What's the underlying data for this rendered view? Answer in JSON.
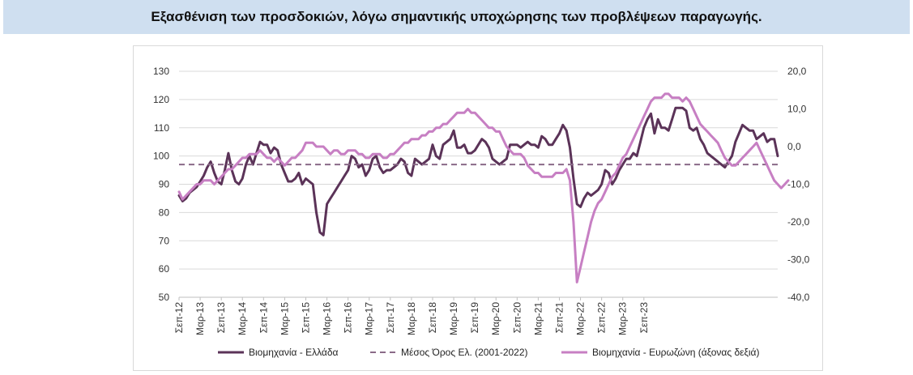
{
  "header": {
    "title": "Εξασθένιση των προσδοκιών, λόγω σημαντικής υποχώρησης των προβλέψεων παραγωγής."
  },
  "chart_data": {
    "type": "line",
    "title": "",
    "grid": "horizontal",
    "legend_position": "bottom",
    "left_axis": {
      "min": 50,
      "max": 130,
      "step": 10,
      "ticks": [
        "50",
        "60",
        "70",
        "80",
        "90",
        "100",
        "110",
        "120",
        "130"
      ]
    },
    "right_axis": {
      "min": -40,
      "max": 20,
      "step": 10,
      "ticks": [
        "-40,0",
        "-30,0",
        "-20,0",
        "-10,0",
        "0,0",
        "10,0",
        "20,0"
      ]
    },
    "x_start": "2012-09",
    "x_end": "2023-09",
    "x_tick_labels": [
      "Σεπ-12",
      "Μαρ-13",
      "Σεπ-13",
      "Μαρ-14",
      "Σεπ-14",
      "Μαρ-15",
      "Σεπ-15",
      "Μαρ-16",
      "Σεπ-16",
      "Μαρ-17",
      "Σεπ-17",
      "Μαρ-18",
      "Σεπ-18",
      "Μαρ-19",
      "Σεπ-19",
      "Μαρ-20",
      "Σεπ-20",
      "Μαρ-21",
      "Σεπ-21",
      "Μαρ-22",
      "Σεπ-22",
      "Μαρ-23",
      "Σεπ-23"
    ],
    "series": [
      {
        "name": "Βιομηχανία  - Ελλάδα",
        "axis": "left",
        "color": "#5b3358",
        "style": "solid",
        "values": [
          86,
          84,
          85,
          87,
          88,
          89,
          91,
          93,
          96,
          98,
          94,
          91,
          90,
          95,
          101,
          95,
          91,
          90,
          92,
          97,
          100,
          97,
          101,
          105,
          104,
          104,
          101,
          103,
          102,
          97,
          94,
          91,
          91,
          92,
          94,
          90,
          92,
          91,
          90,
          80,
          73,
          72,
          83,
          85,
          87,
          89,
          91,
          93,
          95,
          100,
          99,
          96,
          97,
          93,
          95,
          99,
          100,
          96,
          94,
          95,
          95,
          96,
          97,
          99,
          98,
          94,
          93,
          99,
          98,
          97,
          98,
          99,
          104,
          100,
          99,
          104,
          105,
          106,
          109,
          103,
          103,
          104,
          101,
          101,
          102,
          104,
          106,
          105,
          103,
          99,
          98,
          97,
          98,
          99,
          104,
          104,
          104,
          103,
          104,
          105,
          104,
          104,
          103,
          107,
          106,
          104,
          104,
          106,
          108,
          111,
          109,
          103,
          92,
          83,
          82,
          85,
          87,
          86,
          87,
          88,
          90,
          95,
          94,
          90,
          92,
          95,
          97,
          99,
          99,
          101,
          100,
          105,
          110,
          113,
          115,
          108,
          113,
          110,
          110,
          109,
          113,
          117,
          117,
          117,
          116,
          110,
          109,
          110,
          106,
          104,
          101,
          100,
          99,
          98,
          97,
          96,
          98,
          100,
          105,
          108,
          111,
          110,
          109,
          109,
          106,
          107,
          108,
          105,
          106,
          106,
          100
        ]
      },
      {
        "name": "Μέσος Όρος Ελ. (2001-2022)",
        "axis": "left",
        "color": "#8a6a88",
        "style": "dashed",
        "constant": 97
      },
      {
        "name": "Βιομηχανία - Ευρωζώνη (άξονας δεξιά)",
        "axis": "right",
        "color": "#c77fc3",
        "style": "solid",
        "values": [
          -12,
          -14,
          -13,
          -12,
          -11,
          -10,
          -10,
          -9,
          -9,
          -9,
          -10,
          -9,
          -8,
          -7,
          -6,
          -6,
          -5,
          -4,
          -3,
          -3,
          -2,
          -2,
          -2,
          -1,
          -2,
          -3,
          -3,
          -4,
          -3,
          -4,
          -5,
          -4,
          -3,
          -3,
          -2,
          -1,
          1,
          1,
          1,
          0,
          0,
          0,
          -1,
          -2,
          -1,
          -1,
          -2,
          -2,
          -1,
          -1,
          -1,
          -2,
          -2,
          -3,
          -3,
          -2,
          -2,
          -2,
          -3,
          -3,
          -2,
          -2,
          -1,
          0,
          1,
          1,
          2,
          2,
          2,
          3,
          3,
          4,
          4,
          5,
          5,
          6,
          6,
          7,
          8,
          9,
          9,
          9,
          10,
          9,
          9,
          8,
          7,
          6,
          5,
          5,
          4,
          4,
          2,
          0,
          -1,
          -2,
          -2,
          -2,
          -3,
          -5,
          -6,
          -7,
          -7,
          -8,
          -8,
          -8,
          -8,
          -7,
          -7,
          -7,
          -6,
          -9,
          -20,
          -36,
          -32,
          -28,
          -24,
          -20,
          -17,
          -15,
          -14,
          -12,
          -10,
          -8,
          -7,
          -5,
          -3,
          -2,
          0,
          2,
          4,
          6,
          8,
          10,
          12,
          13,
          13,
          13,
          14,
          14,
          13,
          13,
          13,
          12,
          13,
          12,
          10,
          8,
          6,
          5,
          4,
          3,
          2,
          1,
          -1,
          -3,
          -4,
          -5,
          -5,
          -4,
          -3,
          -2,
          -1,
          0,
          1,
          -1,
          -3,
          -5,
          -7,
          -9,
          -10,
          -11,
          -10,
          -9
        ]
      }
    ]
  }
}
